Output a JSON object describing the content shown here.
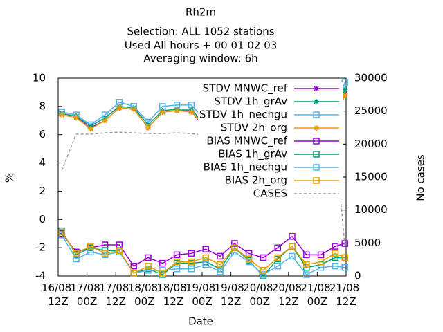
{
  "chart_data": {
    "type": "line",
    "title": [
      "Rh2m",
      "Selection: ALL    1052 stations",
      "Used  All hours  + 00 01 02 03",
      "Averaging window:  6h"
    ],
    "xlabel": "Date",
    "ylabel": "%",
    "y2label": "No cases",
    "x": [
      1.5,
      7.5,
      13.5,
      19.5,
      25.5,
      31.5,
      37.5,
      43.5,
      49.5,
      55.5,
      61.5,
      67.5,
      73.5,
      79.5,
      85.5,
      91.5,
      97.5,
      103.5,
      109.5,
      115.5,
      119.5
    ],
    "xlim": [
      0,
      120
    ],
    "xticks": [
      {
        "value": 0,
        "label": "16/08 12Z"
      },
      {
        "value": 12,
        "label": "17/08 00Z"
      },
      {
        "value": 24,
        "label": "17/08 12Z"
      },
      {
        "value": 36,
        "label": "18/08 00Z"
      },
      {
        "value": 48,
        "label": "18/08 12Z"
      },
      {
        "value": 60,
        "label": "19/08 00Z"
      },
      {
        "value": 72,
        "label": "19/08 12Z"
      },
      {
        "value": 84,
        "label": "20/08 00Z"
      },
      {
        "value": 96,
        "label": "20/08 12Z"
      },
      {
        "value": 108,
        "label": "21/08 00Z"
      },
      {
        "value": 120,
        "label": "21/08 12Z"
      }
    ],
    "ylim": [
      -4,
      10
    ],
    "yticks": [
      -4,
      -2,
      0,
      2,
      4,
      6,
      8,
      10
    ],
    "y2lim": [
      0,
      30000
    ],
    "y2ticks": [
      0,
      5000,
      10000,
      15000,
      20000,
      25000,
      30000
    ],
    "legend": "upper right",
    "series": [
      {
        "name": "STDV MNWC_ref",
        "color": "#9400d3",
        "marker": "star",
        "values": [
          7.5,
          7.3,
          6.5,
          7.0,
          7.9,
          7.8,
          6.5,
          7.6,
          7.7,
          7.7,
          6.3,
          8.0,
          8.5,
          8.0,
          7.0,
          7.2,
          7.1,
          7.6,
          6.9,
          7.2,
          8.9
        ]
      },
      {
        "name": "STDV 1h_grAv",
        "color": "#009e73",
        "marker": "star",
        "values": [
          7.5,
          7.3,
          6.6,
          7.2,
          8.0,
          7.9,
          6.7,
          7.7,
          7.8,
          7.8,
          6.6,
          8.2,
          8.8,
          8.2,
          7.3,
          7.3,
          7.2,
          7.8,
          7.1,
          7.3,
          9.2
        ]
      },
      {
        "name": "STDV 1h_nechgu",
        "color": "#56b4e9",
        "marker": "square",
        "values": [
          7.6,
          7.4,
          6.7,
          7.4,
          8.3,
          8.0,
          6.9,
          8.0,
          8.1,
          8.1,
          7.0,
          8.4,
          9.0,
          8.4,
          7.6,
          7.6,
          7.3,
          8.1,
          7.4,
          7.6,
          9.7
        ]
      },
      {
        "name": "STDV 2h_org",
        "color": "#e69f00",
        "marker": "star",
        "values": [
          7.4,
          7.2,
          6.4,
          7.0,
          7.9,
          7.8,
          6.5,
          7.6,
          7.7,
          7.6,
          6.6,
          8.0,
          8.5,
          8.0,
          7.2,
          7.2,
          7.0,
          7.6,
          6.8,
          7.1,
          8.8
        ]
      },
      {
        "name": "BIAS MNWC_ref",
        "color": "#9400d3",
        "marker": "square",
        "values": [
          -1.0,
          -2.3,
          -2.0,
          -1.8,
          -1.8,
          -3.3,
          -2.7,
          -3.1,
          -2.5,
          -2.4,
          -2.1,
          -2.6,
          -1.7,
          -2.4,
          -2.7,
          -2.0,
          -1.2,
          -2.5,
          -2.5,
          -1.9,
          -1.7
        ]
      },
      {
        "name": "BIAS 1h_grAv",
        "color": "#009e73",
        "marker": "square",
        "values": [
          -0.8,
          -2.5,
          -2.0,
          -2.2,
          -2.2,
          -3.8,
          -3.5,
          -3.9,
          -3.1,
          -3.1,
          -3.0,
          -3.5,
          -2.0,
          -2.9,
          -4.0,
          -2.8,
          -1.9,
          -3.4,
          -3.2,
          -2.7,
          -2.7
        ]
      },
      {
        "name": "BIAS 1h_nechgu",
        "color": "#56b4e9",
        "marker": "square",
        "values": [
          -1.1,
          -2.8,
          -2.3,
          -2.5,
          -2.3,
          -3.8,
          -3.6,
          -3.6,
          -3.5,
          -3.5,
          -3.2,
          -3.7,
          -2.3,
          -3.0,
          -3.9,
          -3.3,
          -2.6,
          -3.9,
          -3.4,
          -3.3,
          -3.4
        ]
      },
      {
        "name": "BIAS 2h_org",
        "color": "#e69f00",
        "marker": "square",
        "values": [
          -0.9,
          -2.4,
          -1.9,
          -2.4,
          -2.2,
          -3.8,
          -3.3,
          -3.8,
          -3.0,
          -3.0,
          -2.7,
          -3.2,
          -2.0,
          -2.8,
          -3.6,
          -2.7,
          -1.9,
          -3.2,
          -3.0,
          -2.4,
          -2.7
        ]
      },
      {
        "name": "CASES",
        "color": "#999999",
        "dash": true,
        "axis": "y2",
        "values": [
          16000,
          21500,
          21500,
          21700,
          21800,
          21700,
          21600,
          21600,
          21700,
          21600,
          21300,
          21500,
          21500,
          21200,
          21000,
          21400,
          21500,
          21500,
          21200,
          20500,
          4500
        ]
      }
    ]
  }
}
